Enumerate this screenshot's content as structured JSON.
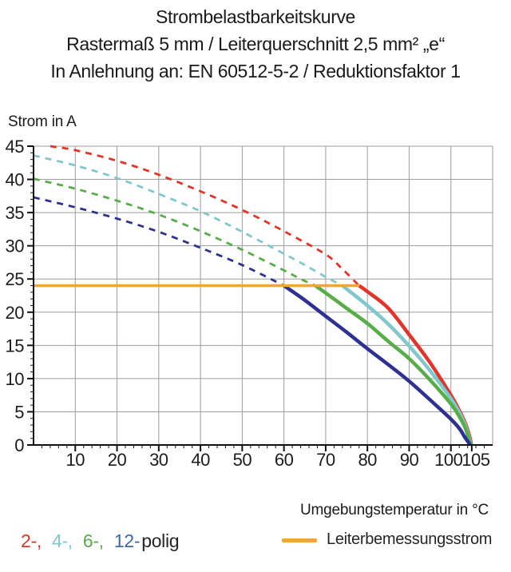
{
  "header": {
    "title": "Strombelastbarkeitskurve",
    "subtitle": "Rastermaß 5 mm / Leiterquerschnitt 2,5 mm² „e“",
    "subtitle2": "In Anlehnung an: EN 60512-5-2 / Reduktionsfaktor 1"
  },
  "colors": {
    "red": "#E23428",
    "cyan": "#7FC8CE",
    "green": "#57AE49",
    "blue": "#2E3191",
    "legend_blue": "#3E6A9F",
    "orange": "#F4A43B",
    "grid": "#9D9D9D",
    "axis": "#111111",
    "text": "#1C1C1C"
  },
  "chart_data": {
    "type": "line",
    "title": "Strombelastbarkeitskurve",
    "xlabel": "Umgebungstemperatur in °C",
    "ylabel": "Strom in A",
    "xlim": [
      0,
      110
    ],
    "ylim": [
      0,
      45
    ],
    "x_major_ticks": [
      10,
      20,
      30,
      40,
      50,
      60,
      70,
      80,
      90,
      100,
      105
    ],
    "x_minor_step": 2,
    "y_major_ticks": [
      0,
      5,
      10,
      15,
      20,
      25,
      30,
      35,
      40,
      45
    ],
    "y_minor_step": 1,
    "grid": {
      "x_step": 10,
      "y_step": 5,
      "on": true
    },
    "legend_position": "bottom",
    "rated_current": {
      "label": "Leiterbemessungsstrom",
      "value_a": 24,
      "x_start_c": 0,
      "x_end_c": 78,
      "color_key": "orange"
    },
    "series": [
      {
        "name": "2-polig",
        "color_key": "red",
        "derating_start_c": 78,
        "dashed": [
          [
            4,
            45
          ],
          [
            10,
            44.4
          ],
          [
            20,
            42.8
          ],
          [
            30,
            40.7
          ],
          [
            40,
            38.2
          ],
          [
            50,
            35.4
          ],
          [
            60,
            32.2
          ],
          [
            70,
            28.7
          ],
          [
            74,
            26.5
          ],
          [
            78,
            24
          ]
        ],
        "solid": [
          [
            78,
            24
          ],
          [
            80,
            23.1
          ],
          [
            85,
            20.6
          ],
          [
            90,
            16.6
          ],
          [
            95,
            12.4
          ],
          [
            100,
            7.5
          ],
          [
            102,
            5.2
          ],
          [
            103.5,
            3.2
          ],
          [
            104.5,
            1.2
          ],
          [
            104.9,
            0
          ]
        ]
      },
      {
        "name": "4-polig",
        "color_key": "cyan",
        "derating_start_c": 74,
        "dashed": [
          [
            0,
            43.6
          ],
          [
            10,
            42.1
          ],
          [
            20,
            40.2
          ],
          [
            30,
            37.8
          ],
          [
            40,
            35.2
          ],
          [
            50,
            32.1
          ],
          [
            60,
            28.8
          ],
          [
            65,
            27.1
          ],
          [
            70,
            25.3
          ],
          [
            74,
            24
          ]
        ],
        "solid": [
          [
            74,
            24
          ],
          [
            76,
            23
          ],
          [
            80,
            21
          ],
          [
            85,
            18.2
          ],
          [
            90,
            14.9
          ],
          [
            95,
            11.2
          ],
          [
            100,
            7
          ],
          [
            102,
            4.9
          ],
          [
            103.5,
            2.9
          ],
          [
            104.4,
            1
          ],
          [
            104.8,
            0
          ]
        ]
      },
      {
        "name": "6-polig",
        "color_key": "green",
        "derating_start_c": 67.5,
        "dashed": [
          [
            0,
            40.1
          ],
          [
            10,
            38.6
          ],
          [
            20,
            36.8
          ],
          [
            30,
            34.7
          ],
          [
            40,
            32.2
          ],
          [
            50,
            29.4
          ],
          [
            60,
            26.3
          ],
          [
            64,
            25
          ],
          [
            67.5,
            24
          ]
        ],
        "solid": [
          [
            67.5,
            24
          ],
          [
            70,
            22.9
          ],
          [
            75,
            20.6
          ],
          [
            80,
            18.3
          ],
          [
            85,
            15.6
          ],
          [
            90,
            13
          ],
          [
            95,
            9.8
          ],
          [
            100,
            6.2
          ],
          [
            102,
            4.3
          ],
          [
            103.5,
            2.5
          ],
          [
            104.3,
            0.9
          ],
          [
            104.7,
            0
          ]
        ]
      },
      {
        "name": "12-polig",
        "color_key": "blue",
        "derating_start_c": 60,
        "dashed": [
          [
            0,
            37.3
          ],
          [
            10,
            35.8
          ],
          [
            20,
            34.1
          ],
          [
            30,
            32.1
          ],
          [
            40,
            29.7
          ],
          [
            50,
            27.1
          ],
          [
            60,
            24
          ]
        ],
        "solid": [
          [
            60,
            24
          ],
          [
            65,
            21.8
          ],
          [
            70,
            19.4
          ],
          [
            75,
            17
          ],
          [
            80,
            14.5
          ],
          [
            85,
            12.1
          ],
          [
            90,
            9.6
          ],
          [
            95,
            6.8
          ],
          [
            100,
            3.9
          ],
          [
            102,
            2.5
          ],
          [
            103.3,
            1.2
          ],
          [
            104.3,
            0.3
          ],
          [
            104.6,
            0
          ]
        ]
      }
    ]
  },
  "legend": {
    "pole_items": [
      {
        "text": "2-,",
        "color_key": "red"
      },
      {
        "text": "4-,",
        "color_key": "cyan"
      },
      {
        "text": "6-,",
        "color_key": "green"
      },
      {
        "text": "12-",
        "color_key": "legend_blue"
      }
    ],
    "suffix": "polig",
    "rated_label": "Leiterbemessungsstrom"
  }
}
